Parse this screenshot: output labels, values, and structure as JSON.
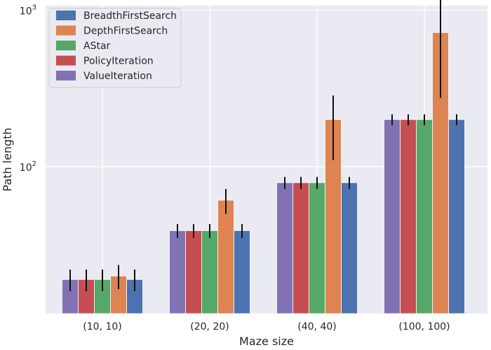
{
  "chart_data": {
    "type": "bar",
    "title": "",
    "xlabel": "Maze size",
    "ylabel": "Path length",
    "yscale": "log",
    "ylim": [
      11.5,
      1070
    ],
    "yticks": [
      {
        "value": 100,
        "base": "10",
        "exp": "2"
      },
      {
        "value": 1000,
        "base": "10",
        "exp": "3"
      }
    ],
    "categories": [
      "(10, 10)",
      "(20, 20)",
      "(40, 40)",
      "(100, 100)"
    ],
    "legend_position": "top-left",
    "grid": true,
    "background": "#eaeaf2",
    "series": [
      {
        "name": "BreadthFirstSearch",
        "color": "#4c72b0",
        "slot": 4,
        "values": [
          19,
          39,
          79,
          200
        ],
        "err_low": [
          16,
          35,
          72,
          184
        ],
        "err_high": [
          22,
          43,
          86,
          216
        ]
      },
      {
        "name": "DepthFirstSearch",
        "color": "#dd8452",
        "slot": 3,
        "values": [
          20,
          61,
          200,
          720
        ],
        "err_low": [
          16.5,
          50,
          110,
          275
        ],
        "err_high": [
          23.5,
          72,
          285,
          1170
        ]
      },
      {
        "name": "AStar",
        "color": "#55a868",
        "slot": 2,
        "values": [
          19,
          39,
          79,
          200
        ],
        "err_low": [
          16,
          35,
          72,
          184
        ],
        "err_high": [
          22,
          43,
          86,
          216
        ]
      },
      {
        "name": "PolicyIteration",
        "color": "#c44e52",
        "slot": 1,
        "values": [
          19,
          39,
          79,
          200
        ],
        "err_low": [
          16,
          35,
          72,
          184
        ],
        "err_high": [
          22,
          43,
          86,
          216
        ]
      },
      {
        "name": "ValueIteration",
        "color": "#8172b3",
        "slot": 0,
        "values": [
          19,
          39,
          79,
          200
        ],
        "err_low": [
          16,
          35,
          72,
          184
        ],
        "err_high": [
          22,
          43,
          86,
          216
        ]
      }
    ]
  }
}
